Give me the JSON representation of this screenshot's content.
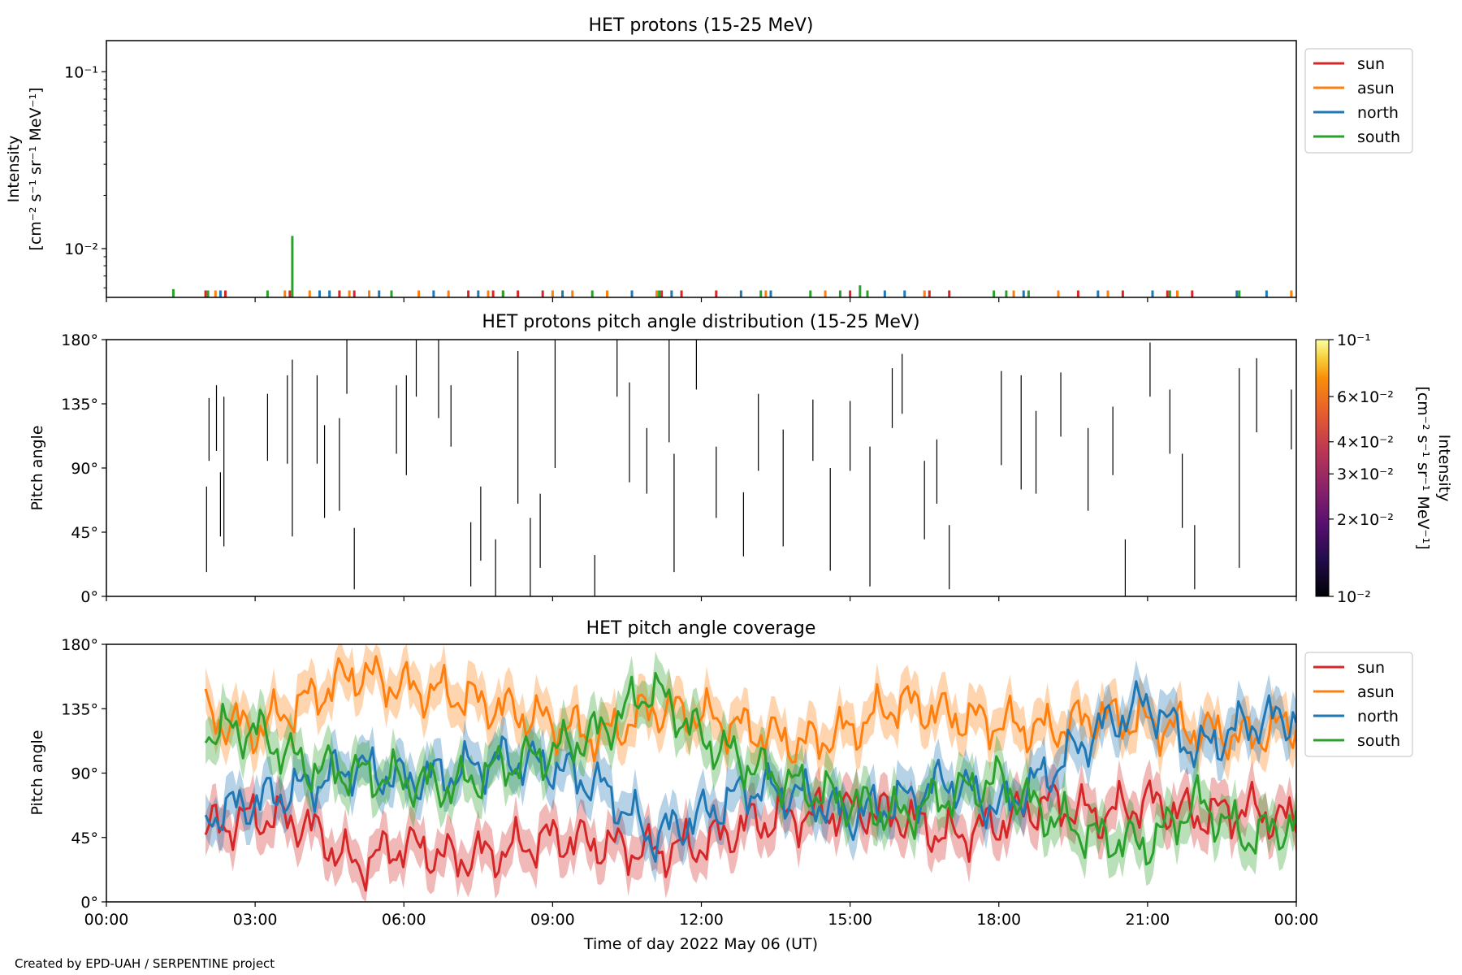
{
  "credit": "Created by EPD-UAH / SERPENTINE project",
  "colors": {
    "sun": "#d62728",
    "asun": "#ff7f0e",
    "north": "#1f77b4",
    "south": "#2ca02c"
  },
  "chart_data": [
    {
      "type": "line",
      "title": "HET protons (15-25 MeV)",
      "ylabel_line1": "Intensity",
      "ylabel_line2": "[cm⁻² s⁻¹ sr⁻¹ MeV⁻¹]",
      "yscale": "log",
      "ylim": [
        0.0053,
        0.15
      ],
      "ytick_labels": [
        "10⁻¹",
        "10⁻²"
      ],
      "xlim_hours": [
        0,
        24
      ],
      "legend": {
        "placement": "outside-right-top",
        "entries": [
          "sun",
          "asun",
          "north",
          "south"
        ]
      },
      "series": [
        {
          "name": "sun",
          "x_hours": [
            2.0,
            2.4,
            3.7,
            4.7,
            5.0,
            7.3,
            7.8,
            8.0,
            8.3,
            8.8,
            11.2,
            11.6,
            12.3,
            15.0,
            16.6,
            17.0,
            19.6,
            20.5,
            21.4,
            21.9
          ],
          "values": [
            0.0058,
            0.0058,
            0.0058,
            0.0058,
            0.0058,
            0.0058,
            0.0058,
            0.0058,
            0.0058,
            0.0058,
            0.0058,
            0.0058,
            0.0058,
            0.0058,
            0.0058,
            0.0058,
            0.0058,
            0.0058,
            0.0058,
            0.0058
          ]
        },
        {
          "name": "asun",
          "x_hours": [
            2.2,
            3.6,
            4.1,
            4.9,
            5.3,
            6.3,
            6.9,
            7.7,
            9.0,
            9.4,
            10.1,
            11.1,
            13.3,
            14.5,
            16.5,
            18.3,
            19.2,
            20.2,
            21.6,
            23.9
          ],
          "values": [
            0.0058,
            0.0058,
            0.0058,
            0.0058,
            0.0058,
            0.0058,
            0.0058,
            0.0058,
            0.0058,
            0.0058,
            0.0058,
            0.0058,
            0.0058,
            0.0058,
            0.0058,
            0.0058,
            0.0058,
            0.0058,
            0.0058,
            0.0058
          ]
        },
        {
          "name": "north",
          "x_hours": [
            2.3,
            4.3,
            4.5,
            5.5,
            6.6,
            7.5,
            9.2,
            10.6,
            11.4,
            12.8,
            13.4,
            15.7,
            16.1,
            18.5,
            20.0,
            21.1,
            22.8,
            23.4
          ],
          "values": [
            0.0058,
            0.0058,
            0.0058,
            0.0058,
            0.0058,
            0.0058,
            0.0058,
            0.0058,
            0.0058,
            0.0058,
            0.0058,
            0.0058,
            0.0058,
            0.0058,
            0.0058,
            0.0058,
            0.0058,
            0.0058
          ]
        },
        {
          "name": "south",
          "x_hours": [
            1.35,
            2.05,
            3.25,
            3.75,
            5.75,
            8.0,
            9.8,
            11.15,
            13.2,
            14.2,
            14.8,
            15.2,
            15.35,
            17.9,
            18.15,
            18.6,
            21.45,
            22.85
          ],
          "values": [
            0.0059,
            0.0058,
            0.0058,
            0.0118,
            0.0058,
            0.0058,
            0.0058,
            0.0058,
            0.0058,
            0.0058,
            0.0058,
            0.0062,
            0.0058,
            0.0058,
            0.0058,
            0.0058,
            0.0058,
            0.0058
          ]
        }
      ]
    },
    {
      "type": "heatmap",
      "title": "HET protons pitch angle distribution (15-25 MeV)",
      "ylabel": "Pitch angle",
      "ylim": [
        0,
        180
      ],
      "yticks": [
        0,
        45,
        90,
        135,
        180
      ],
      "ytick_labels": [
        "0°",
        "45°",
        "90°",
        "135°",
        "180°"
      ],
      "xlim_hours": [
        0,
        24
      ],
      "colorbar": {
        "scale": "log",
        "range": [
          0.01,
          0.1
        ],
        "colormap": "inferno",
        "ticks": [
          0.1,
          0.06,
          0.04,
          0.03,
          0.02,
          0.01
        ],
        "tick_labels": [
          "10⁻¹",
          "6×10⁻²",
          "4×10⁻²",
          "3×10⁻²",
          "2×10⁻²",
          "10⁻²"
        ],
        "label_line1": "Intensity",
        "label_line2": "[cm⁻² s⁻¹ sr⁻¹ MeV⁻¹]"
      },
      "segments": [
        {
          "x": 2.02,
          "y": [
            17,
            77
          ]
        },
        {
          "x": 2.07,
          "y": [
            95,
            139
          ]
        },
        {
          "x": 2.22,
          "y": [
            102,
            148
          ]
        },
        {
          "x": 2.3,
          "y": [
            42,
            87
          ]
        },
        {
          "x": 2.37,
          "y": [
            35,
            140
          ]
        },
        {
          "x": 3.25,
          "y": [
            95,
            142
          ]
        },
        {
          "x": 3.65,
          "y": [
            93,
            155
          ]
        },
        {
          "x": 3.75,
          "y": [
            42,
            166
          ]
        },
        {
          "x": 4.25,
          "y": [
            93,
            155
          ]
        },
        {
          "x": 4.4,
          "y": [
            55,
            120
          ]
        },
        {
          "x": 4.7,
          "y": [
            60,
            125
          ]
        },
        {
          "x": 4.85,
          "y": [
            142,
            180
          ]
        },
        {
          "x": 5.0,
          "y": [
            5,
            48
          ]
        },
        {
          "x": 5.85,
          "y": [
            100,
            148
          ]
        },
        {
          "x": 6.05,
          "y": [
            85,
            155
          ]
        },
        {
          "x": 6.25,
          "y": [
            140,
            180
          ]
        },
        {
          "x": 6.7,
          "y": [
            125,
            180
          ]
        },
        {
          "x": 6.95,
          "y": [
            105,
            148
          ]
        },
        {
          "x": 7.35,
          "y": [
            7,
            52
          ]
        },
        {
          "x": 7.55,
          "y": [
            25,
            77
          ]
        },
        {
          "x": 7.85,
          "y": [
            0,
            40
          ]
        },
        {
          "x": 8.3,
          "y": [
            65,
            172
          ]
        },
        {
          "x": 8.55,
          "y": [
            0,
            55
          ]
        },
        {
          "x": 8.75,
          "y": [
            20,
            72
          ]
        },
        {
          "x": 9.05,
          "y": [
            90,
            180
          ]
        },
        {
          "x": 9.85,
          "y": [
            0,
            29
          ]
        },
        {
          "x": 10.3,
          "y": [
            140,
            180
          ]
        },
        {
          "x": 10.55,
          "y": [
            80,
            150
          ]
        },
        {
          "x": 10.9,
          "y": [
            72,
            118
          ]
        },
        {
          "x": 11.35,
          "y": [
            108,
            180
          ]
        },
        {
          "x": 11.45,
          "y": [
            17,
            100
          ]
        },
        {
          "x": 11.9,
          "y": [
            145,
            180
          ]
        },
        {
          "x": 12.3,
          "y": [
            55,
            105
          ]
        },
        {
          "x": 12.85,
          "y": [
            28,
            73
          ]
        },
        {
          "x": 13.15,
          "y": [
            88,
            142
          ]
        },
        {
          "x": 13.65,
          "y": [
            35,
            117
          ]
        },
        {
          "x": 14.25,
          "y": [
            95,
            138
          ]
        },
        {
          "x": 14.6,
          "y": [
            18,
            90
          ]
        },
        {
          "x": 15.0,
          "y": [
            88,
            137
          ]
        },
        {
          "x": 15.4,
          "y": [
            7,
            105
          ]
        },
        {
          "x": 15.85,
          "y": [
            118,
            160
          ]
        },
        {
          "x": 16.05,
          "y": [
            128,
            170
          ]
        },
        {
          "x": 16.5,
          "y": [
            40,
            95
          ]
        },
        {
          "x": 16.75,
          "y": [
            65,
            110
          ]
        },
        {
          "x": 17.0,
          "y": [
            5,
            50
          ]
        },
        {
          "x": 18.05,
          "y": [
            92,
            158
          ]
        },
        {
          "x": 18.45,
          "y": [
            75,
            155
          ]
        },
        {
          "x": 18.75,
          "y": [
            72,
            130
          ]
        },
        {
          "x": 19.25,
          "y": [
            112,
            157
          ]
        },
        {
          "x": 19.8,
          "y": [
            60,
            118
          ]
        },
        {
          "x": 20.3,
          "y": [
            85,
            133
          ]
        },
        {
          "x": 20.55,
          "y": [
            0,
            40
          ]
        },
        {
          "x": 21.05,
          "y": [
            140,
            178
          ]
        },
        {
          "x": 21.45,
          "y": [
            100,
            145
          ]
        },
        {
          "x": 21.7,
          "y": [
            48,
            100
          ]
        },
        {
          "x": 21.95,
          "y": [
            5,
            50
          ]
        },
        {
          "x": 22.85,
          "y": [
            20,
            160
          ]
        },
        {
          "x": 23.2,
          "y": [
            115,
            167
          ]
        },
        {
          "x": 23.9,
          "y": [
            103,
            145
          ]
        }
      ]
    },
    {
      "type": "line",
      "title": "HET pitch angle coverage",
      "ylabel": "Pitch angle",
      "xlabel": "Time of day 2022 May 06 (UT)",
      "ylim": [
        0,
        180
      ],
      "yticks": [
        0,
        45,
        90,
        135,
        180
      ],
      "ytick_labels": [
        "0°",
        "45°",
        "90°",
        "135°",
        "180°"
      ],
      "xlim_hours": [
        0,
        24
      ],
      "xticks_hours": [
        0,
        3,
        6,
        9,
        12,
        15,
        18,
        21,
        24
      ],
      "xtick_labels": [
        "00:00",
        "03:00",
        "06:00",
        "09:00",
        "12:00",
        "15:00",
        "18:00",
        "21:00",
        "00:00"
      ],
      "band_halfwidth_deg": 15,
      "legend": {
        "placement": "outside-right-top",
        "entries": [
          "sun",
          "asun",
          "north",
          "south"
        ]
      },
      "series": [
        {
          "name": "sun",
          "x_hours": [
            2,
            3,
            4,
            5,
            6,
            7,
            8,
            9,
            10,
            11,
            12,
            13,
            14,
            15,
            16,
            17,
            18,
            19,
            20,
            21,
            22,
            23,
            24
          ],
          "values": [
            50,
            60,
            55,
            25,
            40,
            30,
            35,
            45,
            40,
            35,
            40,
            55,
            60,
            65,
            60,
            45,
            55,
            70,
            60,
            70,
            60,
            65,
            55
          ]
        },
        {
          "name": "asun",
          "x_hours": [
            2,
            3,
            4,
            5,
            6,
            7,
            8,
            9,
            10,
            11,
            12,
            13,
            14,
            15,
            16,
            17,
            18,
            19,
            20,
            21,
            22,
            23,
            24
          ],
          "values": [
            130,
            120,
            140,
            160,
            150,
            145,
            135,
            125,
            115,
            135,
            130,
            120,
            110,
            120,
            140,
            130,
            125,
            120,
            130,
            125,
            120,
            115,
            125
          ]
        },
        {
          "name": "north",
          "x_hours": [
            2,
            3,
            4,
            5,
            6,
            7,
            8,
            9,
            10,
            11,
            12,
            13,
            14,
            15,
            16,
            17,
            18,
            19,
            20,
            21,
            22,
            23,
            24
          ],
          "values": [
            60,
            70,
            80,
            95,
            85,
            90,
            100,
            95,
            80,
            45,
            60,
            80,
            75,
            60,
            70,
            85,
            65,
            90,
            120,
            140,
            105,
            125,
            130
          ]
        },
        {
          "name": "south",
          "x_hours": [
            2,
            3,
            4,
            5,
            6,
            7,
            8,
            9,
            10,
            11,
            12,
            13,
            14,
            15,
            16,
            17,
            18,
            19,
            20,
            21,
            22,
            23,
            24
          ],
          "values": [
            120,
            120,
            95,
            90,
            85,
            80,
            95,
            105,
            120,
            150,
            115,
            95,
            80,
            70,
            60,
            75,
            85,
            60,
            45,
            40,
            70,
            45,
            55
          ]
        }
      ]
    }
  ]
}
